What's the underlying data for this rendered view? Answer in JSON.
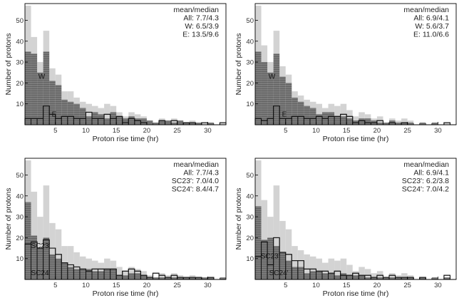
{
  "chart_data": [
    {
      "type": "bar",
      "panel": "top-left",
      "xlabel": "Proton rise time (hr)",
      "ylabel": "Number of protons",
      "xlim": [
        0,
        33
      ],
      "ylim": [
        0,
        58
      ],
      "xticks": [
        "5",
        "10",
        "15",
        "20",
        "25",
        "30"
      ],
      "xtick_values": [
        5,
        10,
        15,
        20,
        25,
        30
      ],
      "yticks": [
        "10",
        "20",
        "30",
        "40",
        "50"
      ],
      "ytick_values": [
        10,
        20,
        30,
        40,
        50
      ],
      "bin_width": 1,
      "annotation": {
        "lines": [
          "mean/median",
          "All:  7.7/4.3",
          "W:  6.5/3.9",
          "E: 13.5/9.6"
        ]
      },
      "series": [
        {
          "name": "All",
          "values": [
            57,
            42,
            30,
            45,
            27,
            24,
            16,
            16,
            13,
            11,
            10,
            9,
            8,
            10,
            9,
            6,
            4,
            6,
            5,
            4,
            2,
            1,
            3,
            2,
            3,
            2,
            1,
            2,
            1,
            1,
            1,
            0,
            1
          ]
        },
        {
          "name": "W",
          "label": "W",
          "values": [
            35,
            34,
            25,
            35,
            21,
            19,
            12,
            11,
            10,
            8,
            4,
            6,
            5,
            3,
            6,
            4,
            3,
            4,
            3,
            3,
            2,
            1,
            2,
            2,
            1,
            2,
            1,
            1,
            1,
            0,
            1,
            0,
            0
          ]
        },
        {
          "name": "E",
          "label": "E",
          "values": [
            3,
            3,
            3,
            9,
            5,
            3,
            4,
            4,
            3,
            3,
            6,
            3,
            3,
            5,
            3,
            4,
            1,
            3,
            2,
            1,
            0,
            0,
            2,
            0,
            2,
            0,
            1,
            1,
            0,
            1,
            0,
            0,
            1
          ]
        }
      ]
    },
    {
      "type": "bar",
      "panel": "top-right",
      "xlabel": "Proton rise time (hr)",
      "ylabel": "Number of protons",
      "xlim": [
        0,
        33
      ],
      "ylim": [
        0,
        58
      ],
      "xticks": [
        "5",
        "10",
        "15",
        "20",
        "25",
        "30"
      ],
      "xtick_values": [
        5,
        10,
        15,
        20,
        25,
        30
      ],
      "yticks": [
        "10",
        "20",
        "30",
        "40",
        "50"
      ],
      "ytick_values": [
        10,
        20,
        30,
        40,
        50
      ],
      "bin_width": 1,
      "annotation": {
        "lines": [
          "mean/median",
          "All:  6.9/4.1",
          "W:  5.6/3.7",
          "E: 11.0/6.6"
        ]
      },
      "series": [
        {
          "name": "All",
          "values": [
            57,
            38,
            30,
            45,
            28,
            24,
            16,
            14,
            12,
            11,
            10,
            8,
            10,
            9,
            10,
            7,
            4,
            6,
            5,
            3,
            4,
            1,
            3,
            2,
            3,
            2,
            0,
            1,
            0,
            1,
            0,
            1,
            0
          ]
        },
        {
          "name": "W",
          "label": "W",
          "values": [
            35,
            30,
            25,
            34,
            23,
            20,
            13,
            11,
            9,
            8,
            5,
            6,
            6,
            4,
            4,
            3,
            2,
            3,
            3,
            2,
            1,
            1,
            2,
            1,
            1,
            1,
            0,
            1,
            0,
            1,
            0,
            0,
            0
          ]
        },
        {
          "name": "E",
          "label": "E",
          "values": [
            3,
            2,
            3,
            9,
            3,
            3,
            4,
            4,
            3,
            3,
            4,
            3,
            4,
            4,
            5,
            4,
            1,
            2,
            1,
            1,
            2,
            0,
            1,
            0,
            1,
            0,
            0,
            0,
            0,
            0,
            0,
            1,
            0
          ]
        }
      ]
    },
    {
      "type": "bar",
      "panel": "bottom-left",
      "xlabel": "Proton rise time (hr)",
      "ylabel": "Number of protons",
      "xlim": [
        0,
        33
      ],
      "ylim": [
        0,
        58
      ],
      "xticks": [
        "5",
        "10",
        "15",
        "20",
        "25",
        "30"
      ],
      "xtick_values": [
        5,
        10,
        15,
        20,
        25,
        30
      ],
      "yticks": [
        "10",
        "20",
        "30",
        "40",
        "50"
      ],
      "ytick_values": [
        10,
        20,
        30,
        40,
        50
      ],
      "bin_width": 1,
      "annotation": {
        "lines": [
          "mean/median",
          "All:  7.7/4.3",
          "SC23': 7.0/4.0",
          "SC24': 8.4/4.7"
        ]
      },
      "series": [
        {
          "name": "All",
          "values": [
            57,
            42,
            30,
            45,
            27,
            24,
            16,
            16,
            13,
            11,
            10,
            9,
            8,
            10,
            9,
            6,
            4,
            6,
            5,
            4,
            2,
            1,
            3,
            2,
            3,
            2,
            1,
            2,
            1,
            1,
            1,
            0,
            1
          ]
        },
        {
          "name": "SC23'",
          "label": "SC23'",
          "values": [
            37,
            21,
            15,
            20,
            12,
            10,
            8,
            6,
            5,
            5,
            5,
            4,
            4,
            5,
            5,
            2,
            2,
            3,
            3,
            2,
            1,
            1,
            1,
            1,
            1,
            1,
            1,
            1,
            1,
            1,
            1,
            0,
            1
          ]
        },
        {
          "name": "SC24'",
          "label": "SC24'",
          "values": [
            17,
            18,
            15,
            19,
            15,
            12,
            8,
            7,
            6,
            5,
            4,
            5,
            5,
            5,
            5,
            2,
            4,
            5,
            4,
            2,
            1,
            3,
            2,
            1,
            2,
            1,
            1,
            1,
            1,
            0,
            1,
            0,
            0
          ]
        }
      ]
    },
    {
      "type": "bar",
      "panel": "bottom-right",
      "xlabel": "Proton rise time (hr)",
      "ylabel": "Number of protons",
      "xlim": [
        0,
        33
      ],
      "ylim": [
        0,
        58
      ],
      "xticks": [
        "5",
        "10",
        "15",
        "20",
        "25",
        "30"
      ],
      "xtick_values": [
        5,
        10,
        15,
        20,
        25,
        30
      ],
      "yticks": [
        "10",
        "20",
        "30",
        "40",
        "50"
      ],
      "ytick_values": [
        10,
        20,
        30,
        40,
        50
      ],
      "bin_width": 1,
      "annotation": {
        "lines": [
          "mean/median",
          "All: 6.9/4.1",
          "SC23': 6.2/3.8",
          "SC24': 7.0/4.2"
        ]
      },
      "series": [
        {
          "name": "All",
          "values": [
            57,
            38,
            30,
            45,
            28,
            24,
            16,
            14,
            12,
            11,
            10,
            8,
            10,
            9,
            10,
            7,
            4,
            6,
            5,
            3,
            4,
            1,
            3,
            2,
            3,
            2,
            0,
            1,
            0,
            1,
            0,
            1,
            0
          ]
        },
        {
          "name": "SC23'",
          "label": "SC23'",
          "values": [
            35,
            19,
            20,
            16,
            13,
            9,
            6,
            6,
            3,
            4,
            4,
            3,
            3,
            2,
            3,
            2,
            2,
            2,
            1,
            1,
            1,
            1,
            1,
            1,
            1,
            1,
            0,
            1,
            0,
            1,
            0,
            1,
            0
          ]
        },
        {
          "name": "SC24'",
          "label": "SC24'",
          "values": [
            11,
            18,
            7,
            20,
            13,
            12,
            9,
            9,
            5,
            5,
            4,
            4,
            3,
            4,
            2,
            2,
            3,
            2,
            2,
            1,
            2,
            1,
            2,
            1,
            1,
            1,
            0,
            1,
            0,
            0,
            0,
            2,
            0
          ]
        }
      ]
    }
  ],
  "colors": {
    "all_fill": "#d3d3d3",
    "main_fill": "#7a7a7a",
    "hatch": "#555555",
    "outline": "#111111",
    "axis": "#000000"
  }
}
